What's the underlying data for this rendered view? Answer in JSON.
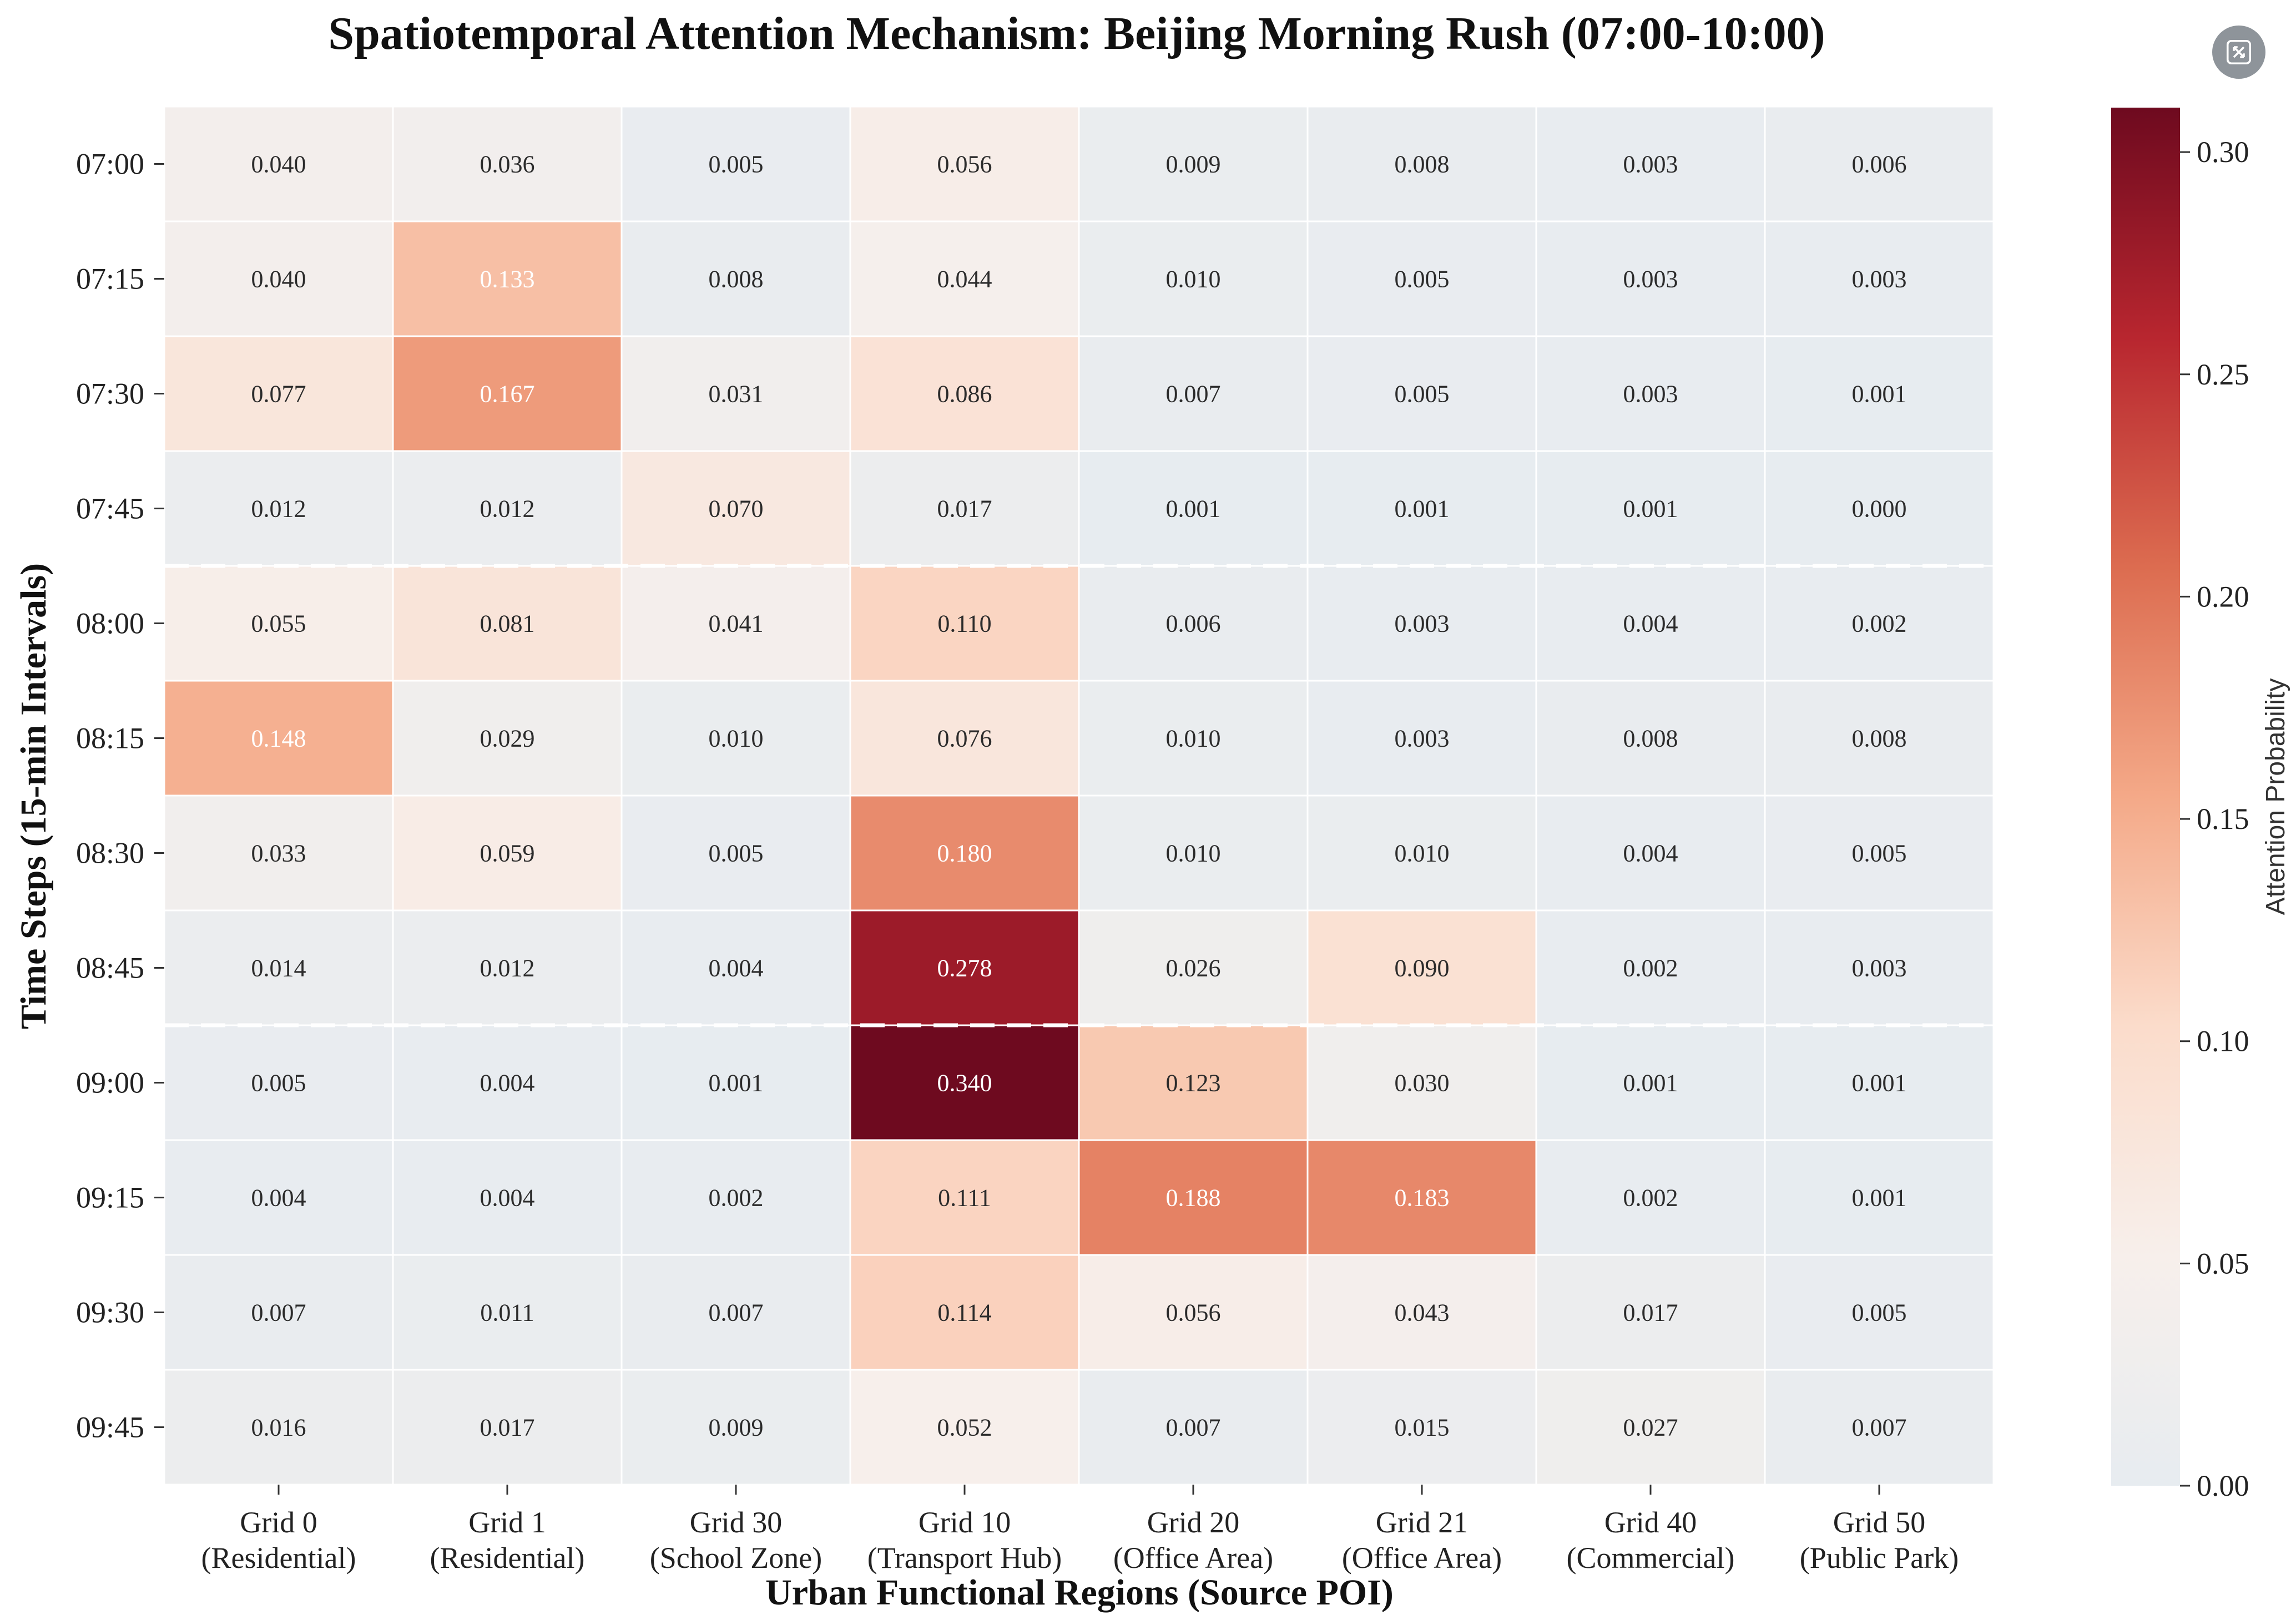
{
  "chart_data": {
    "type": "heatmap",
    "title": "Spatiotemporal Attention Mechanism: Beijing Morning Rush (07:00-10:00)",
    "xlabel": "Urban Functional Regions (Source POI)",
    "ylabel": "Time Steps (15-min Intervals)",
    "x_categories": [
      {
        "name": "Grid 0",
        "type": "(Residential)"
      },
      {
        "name": "Grid 1",
        "type": "(Residential)"
      },
      {
        "name": "Grid 30",
        "type": "(School Zone)"
      },
      {
        "name": "Grid 10",
        "type": "(Transport Hub)"
      },
      {
        "name": "Grid 20",
        "type": "(Office Area)"
      },
      {
        "name": "Grid 21",
        "type": "(Office Area)"
      },
      {
        "name": "Grid 40",
        "type": "(Commercial)"
      },
      {
        "name": "Grid 50",
        "type": "(Public Park)"
      }
    ],
    "y_categories": [
      "07:00",
      "07:15",
      "07:30",
      "07:45",
      "08:00",
      "08:15",
      "08:30",
      "08:45",
      "09:00",
      "09:15",
      "09:30",
      "09:45"
    ],
    "values": [
      [
        0.04,
        0.036,
        0.005,
        0.056,
        0.009,
        0.008,
        0.003,
        0.006
      ],
      [
        0.04,
        0.133,
        0.008,
        0.044,
        0.01,
        0.005,
        0.003,
        0.003
      ],
      [
        0.077,
        0.167,
        0.031,
        0.086,
        0.007,
        0.005,
        0.003,
        0.001
      ],
      [
        0.012,
        0.012,
        0.07,
        0.017,
        0.001,
        0.001,
        0.001,
        0.0
      ],
      [
        0.055,
        0.081,
        0.041,
        0.11,
        0.006,
        0.003,
        0.004,
        0.002
      ],
      [
        0.148,
        0.029,
        0.01,
        0.076,
        0.01,
        0.003,
        0.008,
        0.008
      ],
      [
        0.033,
        0.059,
        0.005,
        0.18,
        0.01,
        0.01,
        0.004,
        0.005
      ],
      [
        0.014,
        0.012,
        0.004,
        0.278,
        0.026,
        0.09,
        0.002,
        0.003
      ],
      [
        0.005,
        0.004,
        0.001,
        0.34,
        0.123,
        0.03,
        0.001,
        0.001
      ],
      [
        0.004,
        0.004,
        0.002,
        0.111,
        0.188,
        0.183,
        0.002,
        0.001
      ],
      [
        0.007,
        0.011,
        0.007,
        0.114,
        0.056,
        0.043,
        0.017,
        0.005
      ],
      [
        0.016,
        0.017,
        0.009,
        0.052,
        0.007,
        0.015,
        0.027,
        0.007
      ]
    ],
    "value_format": "3 decimals",
    "separators_after_rows": [
      "07:45",
      "08:45"
    ],
    "colorbar": {
      "label": "Attention Probability",
      "range": [
        0,
        0.31
      ],
      "ticks": [
        0.0,
        0.05,
        0.1,
        0.15,
        0.2,
        0.25,
        0.3
      ],
      "tick_labels": [
        "0.00",
        "0.05",
        "0.10",
        "0.15",
        "0.20",
        "0.25",
        "0.30"
      ],
      "colors": [
        "#e7ecf0",
        "#f7efeb",
        "#fbdccb",
        "#f4a988",
        "#dc6c50",
        "#b8262f",
        "#6e0a1f"
      ]
    }
  },
  "ui": {
    "expand_icon": "expand-icon"
  }
}
